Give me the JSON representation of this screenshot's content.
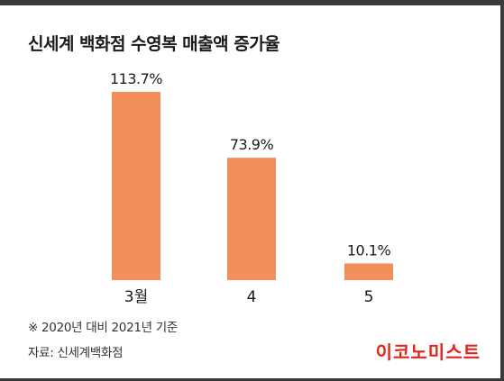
{
  "header": {
    "title": "신세계 백화점 수영복 매출액 증가율"
  },
  "chart_data": {
    "type": "bar",
    "title": "신세계 백화점 수영복 매출액 증가율",
    "xlabel": "",
    "ylabel": "",
    "categories": [
      "3월",
      "4",
      "5"
    ],
    "values": [
      113.7,
      73.9,
      10.1
    ],
    "value_labels": [
      "113.7%",
      "73.9%",
      "10.1%"
    ],
    "unit": "%",
    "ylim": [
      0,
      113.7
    ],
    "grid": false,
    "legend": "none",
    "bar_color": "#F28F5B"
  },
  "footer": {
    "note": "※ 2020년 대비 2021년 기준",
    "source": "자료: 신세계백화점",
    "logo_text": "이코노미스트"
  },
  "colors": {
    "background": "#FFFFFF",
    "frame": "#3A3A3A",
    "bar": "#F28F5B",
    "logo": "#E1251B"
  }
}
